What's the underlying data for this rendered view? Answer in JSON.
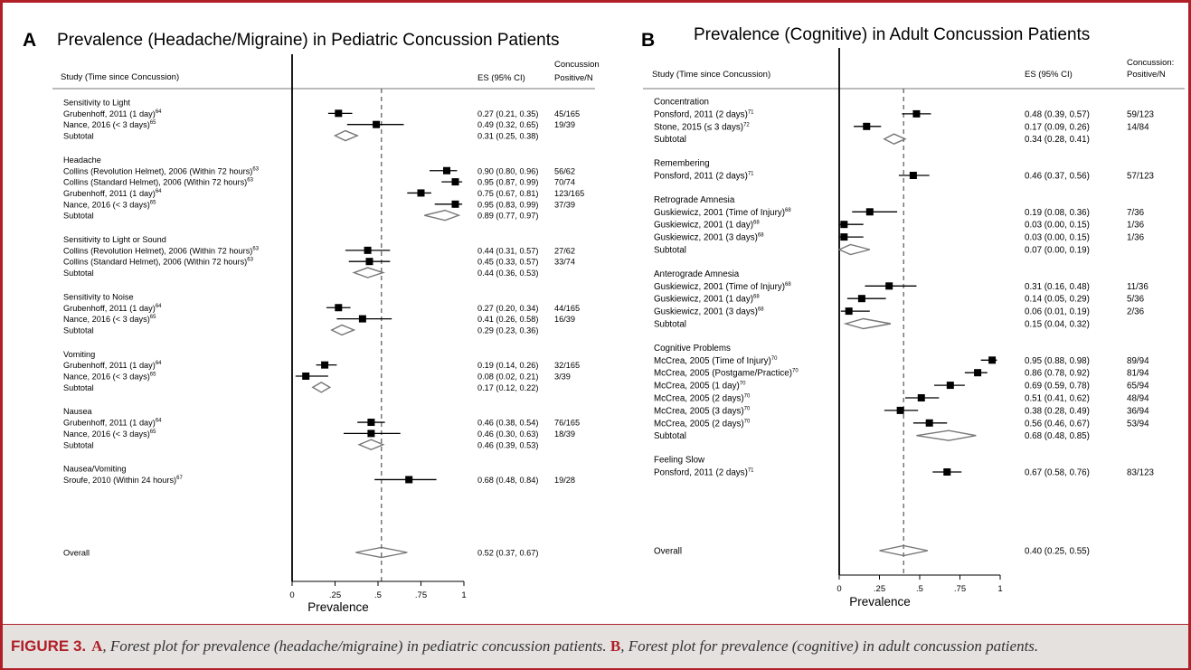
{
  "caption": {
    "label": "FIGURE 3.",
    "a_letter": "A",
    "a_text": ", Forest plot for prevalence (headache/migraine) in pediatric concussion patients.",
    "b_letter": "B",
    "b_text": ", Forest plot for prevalence (cognitive) in adult concussion patients."
  },
  "colors": {
    "border": "#b01e28",
    "caption_bg": "#e4e1df",
    "marker": "#000000",
    "diamond": "#777777"
  },
  "chart_data": [
    {
      "type": "forest",
      "panel": "A",
      "title": "Prevalence (Headache/Migraine) in Pediatric Concussion Patients",
      "xlabel": "Prevalence",
      "xlim": [
        0,
        1
      ],
      "xticks": [
        "0",
        ".25",
        ".5",
        ".75",
        "1"
      ],
      "reference_line": 0.52,
      "headers": {
        "study": "Study (Time since Concussion)",
        "es": "ES (95% CI)",
        "n": [
          "Concussion:",
          "Positive/N"
        ]
      },
      "groups": [
        {
          "name": "Sensitivity to Light",
          "studies": [
            {
              "study": "Grubenhoff, 2011 (1 day)",
              "ref": "64",
              "es": 0.27,
              "lo": 0.21,
              "hi": 0.35,
              "es_label": "0.27 (0.21, 0.35)",
              "n": "45/165"
            },
            {
              "study": "Nance, 2016 (< 3 days)",
              "ref": "65",
              "es": 0.49,
              "lo": 0.32,
              "hi": 0.65,
              "es_label": "0.49 (0.32, 0.65)",
              "n": "19/39"
            }
          ],
          "subtotal": {
            "es": 0.31,
            "lo": 0.25,
            "hi": 0.38,
            "es_label": "0.31 (0.25, 0.38)"
          }
        },
        {
          "name": "Headache",
          "studies": [
            {
              "study": "Collins (Revolution Helmet), 2006 (Within 72 hours)",
              "ref": "63",
              "es": 0.9,
              "lo": 0.8,
              "hi": 0.96,
              "es_label": "0.90 (0.80, 0.96)",
              "n": "56/62"
            },
            {
              "study": "Collins (Standard Helmet), 2006 (Within 72 hours)",
              "ref": "63",
              "es": 0.95,
              "lo": 0.87,
              "hi": 0.99,
              "es_label": "0.95 (0.87, 0.99)",
              "n": "70/74"
            },
            {
              "study": "Grubenhoff, 2011 (1 day)",
              "ref": "64",
              "es": 0.75,
              "lo": 0.67,
              "hi": 0.81,
              "es_label": "0.75 (0.67, 0.81)",
              "n": "123/165"
            },
            {
              "study": "Nance, 2016 (< 3 days)",
              "ref": "65",
              "es": 0.95,
              "lo": 0.83,
              "hi": 0.99,
              "es_label": "0.95 (0.83, 0.99)",
              "n": "37/39"
            }
          ],
          "subtotal": {
            "es": 0.89,
            "lo": 0.77,
            "hi": 0.97,
            "es_label": "0.89 (0.77, 0.97)"
          }
        },
        {
          "name": "Sensitivity to Light or Sound",
          "studies": [
            {
              "study": "Collins (Revolution Helmet), 2006 (Within 72 hours)",
              "ref": "63",
              "es": 0.44,
              "lo": 0.31,
              "hi": 0.57,
              "es_label": "0.44 (0.31, 0.57)",
              "n": "27/62"
            },
            {
              "study": "Collins (Standard Helmet), 2006 (Within 72 hours)",
              "ref": "63",
              "es": 0.45,
              "lo": 0.33,
              "hi": 0.57,
              "es_label": "0.45 (0.33, 0.57)",
              "n": "33/74"
            }
          ],
          "subtotal": {
            "es": 0.44,
            "lo": 0.36,
            "hi": 0.53,
            "es_label": "0.44 (0.36, 0.53)"
          }
        },
        {
          "name": "Sensitivity to Noise",
          "studies": [
            {
              "study": "Grubenhoff, 2011 (1 day)",
              "ref": "64",
              "es": 0.27,
              "lo": 0.2,
              "hi": 0.34,
              "es_label": "0.27 (0.20, 0.34)",
              "n": "44/165"
            },
            {
              "study": "Nance, 2016 (< 3 days)",
              "ref": "65",
              "es": 0.41,
              "lo": 0.26,
              "hi": 0.58,
              "es_label": "0.41 (0.26, 0.58)",
              "n": "16/39"
            }
          ],
          "subtotal": {
            "es": 0.29,
            "lo": 0.23,
            "hi": 0.36,
            "es_label": "0.29 (0.23, 0.36)"
          }
        },
        {
          "name": "Vomiting",
          "studies": [
            {
              "study": "Grubenhoff, 2011 (1 day)",
              "ref": "64",
              "es": 0.19,
              "lo": 0.14,
              "hi": 0.26,
              "es_label": "0.19 (0.14, 0.26)",
              "n": "32/165"
            },
            {
              "study": "Nance, 2016 (< 3 days)",
              "ref": "65",
              "es": 0.08,
              "lo": 0.02,
              "hi": 0.21,
              "es_label": "0.08 (0.02, 0.21)",
              "n": "3/39"
            }
          ],
          "subtotal": {
            "es": 0.17,
            "lo": 0.12,
            "hi": 0.22,
            "es_label": "0.17 (0.12, 0.22)"
          }
        },
        {
          "name": "Nausea",
          "studies": [
            {
              "study": "Grubenhoff, 2011 (1 day)",
              "ref": "64",
              "es": 0.46,
              "lo": 0.38,
              "hi": 0.54,
              "es_label": "0.46 (0.38, 0.54)",
              "n": "76/165"
            },
            {
              "study": "Nance, 2016 (< 3 days)",
              "ref": "65",
              "es": 0.46,
              "lo": 0.3,
              "hi": 0.63,
              "es_label": "0.46 (0.30, 0.63)",
              "n": "18/39"
            }
          ],
          "subtotal": {
            "es": 0.46,
            "lo": 0.39,
            "hi": 0.53,
            "es_label": "0.46 (0.39, 0.53)"
          }
        },
        {
          "name": "Nausea/Vomiting",
          "studies": [
            {
              "study": "Sroufe, 2010 (Within 24 hours)",
              "ref": "67",
              "es": 0.68,
              "lo": 0.48,
              "hi": 0.84,
              "es_label": "0.68 (0.48, 0.84)",
              "n": "19/28"
            }
          ]
        }
      ],
      "overall": {
        "label": "Overall",
        "es": 0.52,
        "lo": 0.37,
        "hi": 0.67,
        "es_label": "0.52 (0.37, 0.67)"
      }
    },
    {
      "type": "forest",
      "panel": "B",
      "title": "Prevalence (Cognitive) in Adult Concussion Patients",
      "xlabel": "Prevalence",
      "xlim": [
        0,
        1
      ],
      "xticks": [
        "0",
        ".25",
        ".5",
        ".75",
        "1"
      ],
      "reference_line": 0.4,
      "headers": {
        "study": "Study (Time since Concussion)",
        "es": "ES (95% CI)",
        "n": [
          "Concussion:",
          "Positive/N"
        ]
      },
      "groups": [
        {
          "name": "Concentration",
          "studies": [
            {
              "study": "Ponsford, 2011 (2 days)",
              "ref": "71",
              "es": 0.48,
              "lo": 0.39,
              "hi": 0.57,
              "es_label": "0.48 (0.39, 0.57)",
              "n": "59/123"
            },
            {
              "study": "Stone, 2015 (≤ 3 days)",
              "ref": "72",
              "es": 0.17,
              "lo": 0.09,
              "hi": 0.26,
              "es_label": "0.17 (0.09, 0.26)",
              "n": "14/84"
            }
          ],
          "subtotal": {
            "es": 0.34,
            "lo": 0.28,
            "hi": 0.41,
            "es_label": "0.34 (0.28, 0.41)"
          }
        },
        {
          "name": "Remembering",
          "studies": [
            {
              "study": "Ponsford, 2011 (2 days)",
              "ref": "71",
              "es": 0.46,
              "lo": 0.37,
              "hi": 0.56,
              "es_label": "0.46 (0.37, 0.56)",
              "n": "57/123"
            }
          ]
        },
        {
          "name": "Retrograde Amnesia",
          "studies": [
            {
              "study": "Guskiewicz, 2001 (Time of Injury)",
              "ref": "68",
              "es": 0.19,
              "lo": 0.08,
              "hi": 0.36,
              "es_label": "0.19 (0.08, 0.36)",
              "n": "7/36"
            },
            {
              "study": "Guskiewicz, 2001 (1 day)",
              "ref": "68",
              "es": 0.03,
              "lo": 0.0,
              "hi": 0.15,
              "es_label": "0.03 (0.00, 0.15)",
              "n": "1/36"
            },
            {
              "study": "Guskiewicz, 2001 (3 days)",
              "ref": "68",
              "es": 0.03,
              "lo": 0.0,
              "hi": 0.15,
              "es_label": "0.03 (0.00, 0.15)",
              "n": "1/36"
            }
          ],
          "subtotal": {
            "es": 0.07,
            "lo": 0.0,
            "hi": 0.19,
            "es_label": "0.07 (0.00, 0.19)"
          }
        },
        {
          "name": "Anterograde Amnesia",
          "studies": [
            {
              "study": "Guskiewicz, 2001 (Time of Injury)",
              "ref": "68",
              "es": 0.31,
              "lo": 0.16,
              "hi": 0.48,
              "es_label": "0.31 (0.16, 0.48)",
              "n": "11/36"
            },
            {
              "study": "Guskiewicz, 2001 (1 day)",
              "ref": "68",
              "es": 0.14,
              "lo": 0.05,
              "hi": 0.29,
              "es_label": "0.14 (0.05, 0.29)",
              "n": "5/36"
            },
            {
              "study": "Guskiewicz, 2001 (3 days)",
              "ref": "68",
              "es": 0.06,
              "lo": 0.01,
              "hi": 0.19,
              "es_label": "0.06 (0.01, 0.19)",
              "n": "2/36"
            }
          ],
          "subtotal": {
            "es": 0.15,
            "lo": 0.04,
            "hi": 0.32,
            "es_label": "0.15 (0.04, 0.32)"
          }
        },
        {
          "name": "Cognitive Problems",
          "studies": [
            {
              "study": "McCrea, 2005 (Time of Injury)",
              "ref": "70",
              "es": 0.95,
              "lo": 0.88,
              "hi": 0.98,
              "es_label": "0.95 (0.88, 0.98)",
              "n": "89/94"
            },
            {
              "study": "McCrea, 2005 (Postgame/Practice)",
              "ref": "70",
              "es": 0.86,
              "lo": 0.78,
              "hi": 0.92,
              "es_label": "0.86 (0.78, 0.92)",
              "n": "81/94"
            },
            {
              "study": "McCrea, 2005 (1 day)",
              "ref": "70",
              "es": 0.69,
              "lo": 0.59,
              "hi": 0.78,
              "es_label": "0.69 (0.59, 0.78)",
              "n": "65/94"
            },
            {
              "study": "McCrea, 2005 (2 days)",
              "ref": "70",
              "es": 0.51,
              "lo": 0.41,
              "hi": 0.62,
              "es_label": "0.51 (0.41, 0.62)",
              "n": "48/94"
            },
            {
              "study": "McCrea, 2005 (3 days)",
              "ref": "70",
              "es": 0.38,
              "lo": 0.28,
              "hi": 0.49,
              "es_label": "0.38 (0.28, 0.49)",
              "n": "36/94"
            },
            {
              "study": "McCrea, 2005 (2 days)",
              "ref": "70",
              "es": 0.56,
              "lo": 0.46,
              "hi": 0.67,
              "es_label": "0.56 (0.46, 0.67)",
              "n": "53/94"
            }
          ],
          "subtotal": {
            "es": 0.68,
            "lo": 0.48,
            "hi": 0.85,
            "es_label": "0.68 (0.48, 0.85)"
          }
        },
        {
          "name": "Feeling Slow",
          "studies": [
            {
              "study": "Ponsford, 2011 (2 days)",
              "ref": "71",
              "es": 0.67,
              "lo": 0.58,
              "hi": 0.76,
              "es_label": "0.67 (0.58, 0.76)",
              "n": "83/123"
            }
          ]
        }
      ],
      "overall": {
        "label": "Overall",
        "es": 0.4,
        "lo": 0.25,
        "hi": 0.55,
        "es_label": "0.40 (0.25, 0.55)"
      }
    }
  ]
}
